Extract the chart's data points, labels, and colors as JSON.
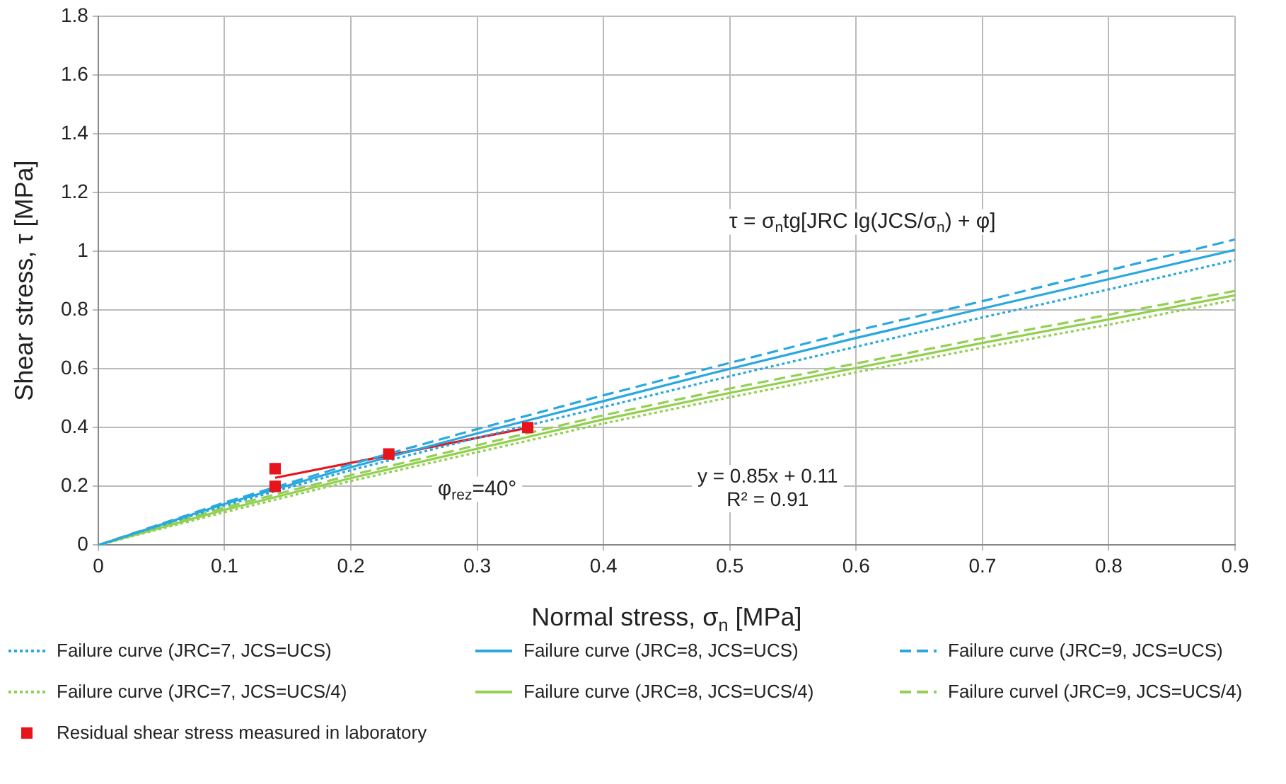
{
  "chart_data": {
    "type": "line",
    "xlabel": "Normal stress, σ$_{n}$ [MPa]",
    "ylabel": "Shear stress, τ [MPa]",
    "x": [
      0,
      0.1,
      0.2,
      0.3,
      0.4,
      0.5,
      0.6,
      0.7,
      0.8,
      0.9
    ],
    "xlim": [
      0,
      0.9
    ],
    "xticks": [
      0,
      0.1,
      0.2,
      0.3,
      0.4,
      0.5,
      0.6,
      0.7,
      0.8,
      0.9
    ],
    "ylim": [
      0,
      1.8
    ],
    "yticks": [
      0,
      0.2,
      0.4,
      0.6,
      0.8,
      1,
      1.2,
      1.4,
      1.6,
      1.8
    ],
    "grid": true,
    "legend": "bottom",
    "marker": "none",
    "series": [
      {
        "name": "Failure curve (JRC=7, JCS=UCS)",
        "color": "#29a8e0",
        "line_style": "dotted",
        "values": [
          0,
          0.135,
          0.255,
          0.365,
          0.47,
          0.575,
          0.675,
          0.775,
          0.87,
          0.97
        ]
      },
      {
        "name": "Failure curve (JRC=8, JCS=UCS)",
        "color": "#29a8e0",
        "line_style": "solid",
        "values": [
          0,
          0.14,
          0.265,
          0.38,
          0.49,
          0.6,
          0.705,
          0.805,
          0.905,
          1.005
        ]
      },
      {
        "name": "Failure curve (JRC=9, JCS=UCS)",
        "color": "#29a8e0",
        "line_style": "dashed",
        "values": [
          0,
          0.145,
          0.275,
          0.395,
          0.51,
          0.62,
          0.73,
          0.83,
          0.935,
          1.04
        ]
      },
      {
        "name": "Failure curve (JRC=7, JCS=UCS/4)",
        "color": "#92d050",
        "line_style": "dotted",
        "values": [
          0,
          0.112,
          0.218,
          0.316,
          0.414,
          0.503,
          0.588,
          0.672,
          0.75,
          0.835
        ]
      },
      {
        "name": "Failure curve (JRC=8, JCS=UCS/4)",
        "color": "#92d050",
        "line_style": "solid",
        "values": [
          0,
          0.12,
          0.228,
          0.328,
          0.428,
          0.518,
          0.603,
          0.688,
          0.768,
          0.85
        ]
      },
      {
        "name": "Failure curvel (JRC=9, JCS=UCS/4)",
        "color": "#92d050",
        "line_style": "dashed",
        "values": [
          0,
          0.128,
          0.238,
          0.34,
          0.442,
          0.533,
          0.618,
          0.704,
          0.784,
          0.865
        ]
      },
      {
        "type": "line",
        "color": "#e8141b",
        "line_style": "solid",
        "marker": "none",
        "x": [
          0.14,
          0.34
        ],
        "values": [
          0.229,
          0.399
        ]
      },
      {
        "name": "Residual shear stress measured in laboratory",
        "type": "scatter",
        "marker": "square",
        "color": "#e8141b",
        "x": [
          0.14,
          0.14,
          0.23,
          0.34
        ],
        "values": [
          0.26,
          0.2,
          0.31,
          0.4
        ]
      }
    ],
    "annotations": [
      "τ = σ$_{n}$tg[JRC lg(JCS/σ$_{n}$) + φ]",
      "φ$_{rez}$=40°",
      "y = 0.85x + 0.11",
      "R² = 0.91"
    ]
  }
}
